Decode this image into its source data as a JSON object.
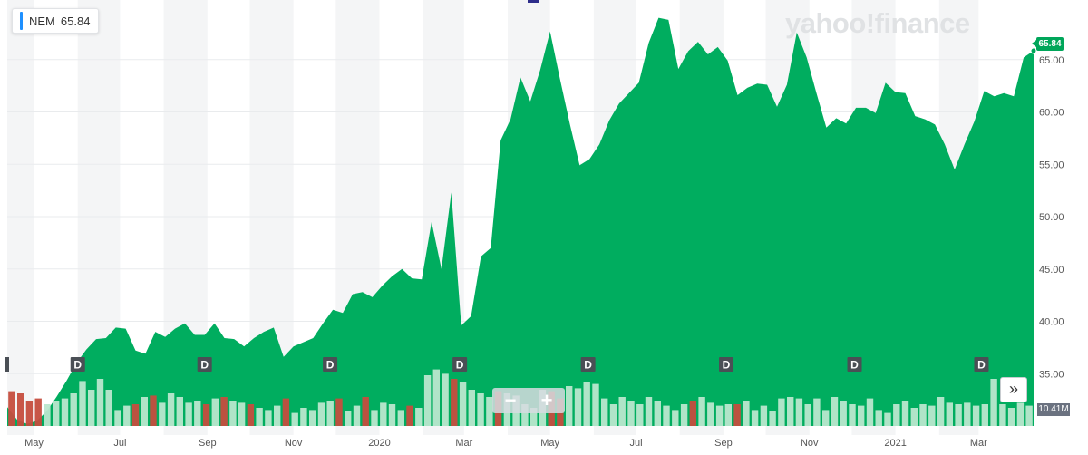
{
  "ticker": {
    "symbol": "NEM",
    "price": "65.84",
    "accent": "#1e90ff"
  },
  "watermark": "yahoo!finance",
  "last_price_label": "65.84",
  "volume_label": "10.41M",
  "controls": {
    "zoom_out": "−",
    "zoom_in": "+",
    "expand": "»",
    "expand_icon": "double-chevron-right-icon"
  },
  "colors": {
    "area": "#00ad5f",
    "volume_up": "#b9e7cd",
    "volume_down": "#c54d3e",
    "band": "#f4f5f6",
    "last_tag": "#00a65a"
  },
  "chart_data": {
    "type": "area",
    "symbol": "NEM",
    "ylim": [
      30,
      70
    ],
    "ticks_y": [
      "35.00",
      "40.00",
      "45.00",
      "50.00",
      "55.00",
      "60.00",
      "65.00"
    ],
    "x_labels": [
      {
        "label": "May",
        "date": "2019-05"
      },
      {
        "label": "Jul",
        "date": "2019-07"
      },
      {
        "label": "Sep",
        "date": "2019-09"
      },
      {
        "label": "Nov",
        "date": "2019-11"
      },
      {
        "label": "2020",
        "date": "2020-01"
      },
      {
        "label": "Mar",
        "date": "2020-03"
      },
      {
        "label": "May",
        "date": "2020-05"
      },
      {
        "label": "Jul",
        "date": "2020-07"
      },
      {
        "label": "Sep",
        "date": "2020-09"
      },
      {
        "label": "Nov",
        "date": "2020-11"
      },
      {
        "label": "2021",
        "date": "2021-01"
      },
      {
        "label": "Mar",
        "date": "2021-03"
      }
    ],
    "series": [
      {
        "values": [
          [
            "2019-04-12",
            31.8
          ],
          [
            "2019-04-19",
            30.6
          ],
          [
            "2019-04-26",
            30.2
          ],
          [
            "2019-05-03",
            30.5
          ],
          [
            "2019-05-10",
            31.4
          ],
          [
            "2019-05-17",
            32.8
          ],
          [
            "2019-05-24",
            34.3
          ],
          [
            "2019-05-31",
            36.0
          ],
          [
            "2019-06-07",
            37.3
          ],
          [
            "2019-06-14",
            38.3
          ],
          [
            "2019-06-21",
            38.4
          ],
          [
            "2019-06-28",
            39.4
          ],
          [
            "2019-07-05",
            39.3
          ],
          [
            "2019-07-12",
            37.2
          ],
          [
            "2019-07-19",
            36.9
          ],
          [
            "2019-07-26",
            39.0
          ],
          [
            "2019-08-02",
            38.5
          ],
          [
            "2019-08-09",
            39.3
          ],
          [
            "2019-08-16",
            39.8
          ],
          [
            "2019-08-23",
            38.7
          ],
          [
            "2019-08-30",
            38.7
          ],
          [
            "2019-09-06",
            39.8
          ],
          [
            "2019-09-13",
            38.4
          ],
          [
            "2019-09-20",
            38.3
          ],
          [
            "2019-09-27",
            37.6
          ],
          [
            "2019-10-04",
            38.4
          ],
          [
            "2019-10-11",
            39.0
          ],
          [
            "2019-10-18",
            39.4
          ],
          [
            "2019-10-25",
            36.6
          ],
          [
            "2019-11-01",
            37.6
          ],
          [
            "2019-11-08",
            38.0
          ],
          [
            "2019-11-15",
            38.4
          ],
          [
            "2019-11-22",
            39.8
          ],
          [
            "2019-11-29",
            41.1
          ],
          [
            "2019-12-06",
            40.8
          ],
          [
            "2019-12-13",
            42.6
          ],
          [
            "2019-12-20",
            42.8
          ],
          [
            "2019-12-27",
            42.3
          ],
          [
            "2020-01-03",
            43.4
          ],
          [
            "2020-01-10",
            44.3
          ],
          [
            "2020-01-17",
            45.0
          ],
          [
            "2020-01-24",
            44.1
          ],
          [
            "2020-01-31",
            44.0
          ],
          [
            "2020-02-07",
            49.5
          ],
          [
            "2020-02-14",
            45.0
          ],
          [
            "2020-02-21",
            52.3
          ],
          [
            "2020-02-28",
            39.6
          ],
          [
            "2020-03-06",
            40.5
          ],
          [
            "2020-03-13",
            46.2
          ],
          [
            "2020-03-20",
            47.0
          ],
          [
            "2020-03-27",
            57.3
          ],
          [
            "2020-04-03",
            59.3
          ],
          [
            "2020-04-10",
            63.3
          ],
          [
            "2020-04-17",
            61.0
          ],
          [
            "2020-04-24",
            64.0
          ],
          [
            "2020-05-01",
            67.7
          ],
          [
            "2020-05-08",
            63.2
          ],
          [
            "2020-05-15",
            58.9
          ],
          [
            "2020-05-22",
            54.9
          ],
          [
            "2020-05-29",
            55.5
          ],
          [
            "2020-06-05",
            56.9
          ],
          [
            "2020-06-12",
            59.2
          ],
          [
            "2020-06-19",
            60.8
          ],
          [
            "2020-06-26",
            61.8
          ],
          [
            "2020-07-03",
            62.8
          ],
          [
            "2020-07-10",
            66.6
          ],
          [
            "2020-07-17",
            69.0
          ],
          [
            "2020-07-24",
            68.8
          ],
          [
            "2020-07-31",
            64.1
          ],
          [
            "2020-08-07",
            65.8
          ],
          [
            "2020-08-14",
            66.7
          ],
          [
            "2020-08-21",
            65.5
          ],
          [
            "2020-08-28",
            66.2
          ],
          [
            "2020-09-04",
            64.9
          ],
          [
            "2020-09-11",
            61.6
          ],
          [
            "2020-09-18",
            62.3
          ],
          [
            "2020-09-25",
            62.7
          ],
          [
            "2020-10-02",
            62.6
          ],
          [
            "2020-10-09",
            60.5
          ],
          [
            "2020-10-16",
            62.6
          ],
          [
            "2020-10-23",
            67.6
          ],
          [
            "2020-10-30",
            65.2
          ],
          [
            "2020-11-06",
            61.8
          ],
          [
            "2020-11-13",
            58.5
          ],
          [
            "2020-11-20",
            59.4
          ],
          [
            "2020-11-27",
            58.9
          ],
          [
            "2020-12-04",
            60.4
          ],
          [
            "2020-12-11",
            60.4
          ],
          [
            "2020-12-18",
            59.9
          ],
          [
            "2020-12-25",
            62.8
          ],
          [
            "2021-01-01",
            61.9
          ],
          [
            "2021-01-08",
            61.8
          ],
          [
            "2021-01-15",
            59.6
          ],
          [
            "2021-01-22",
            59.3
          ],
          [
            "2021-01-29",
            58.8
          ],
          [
            "2021-02-05",
            56.9
          ],
          [
            "2021-02-12",
            54.5
          ],
          [
            "2021-02-19",
            56.9
          ],
          [
            "2021-02-26",
            59.1
          ],
          [
            "2021-03-05",
            62.0
          ],
          [
            "2021-03-12",
            61.5
          ],
          [
            "2021-03-19",
            61.8
          ],
          [
            "2021-03-26",
            61.5
          ],
          [
            "2021-04-02",
            65.2
          ],
          [
            "2021-04-09",
            65.84
          ]
        ]
      }
    ],
    "volume": [
      [
        0.48,
        "d"
      ],
      [
        0.45,
        "d"
      ],
      [
        0.35,
        "d"
      ],
      [
        0.38,
        "d"
      ],
      [
        0.3,
        "u"
      ],
      [
        0.35,
        "u"
      ],
      [
        0.38,
        "u"
      ],
      [
        0.45,
        "u"
      ],
      [
        0.62,
        "u"
      ],
      [
        0.5,
        "u"
      ],
      [
        0.65,
        "u"
      ],
      [
        0.5,
        "u"
      ],
      [
        0.22,
        "u"
      ],
      [
        0.28,
        "u"
      ],
      [
        0.3,
        "d"
      ],
      [
        0.4,
        "u"
      ],
      [
        0.42,
        "d"
      ],
      [
        0.32,
        "u"
      ],
      [
        0.45,
        "u"
      ],
      [
        0.4,
        "u"
      ],
      [
        0.32,
        "u"
      ],
      [
        0.35,
        "u"
      ],
      [
        0.3,
        "d"
      ],
      [
        0.38,
        "u"
      ],
      [
        0.4,
        "d"
      ],
      [
        0.35,
        "u"
      ],
      [
        0.32,
        "u"
      ],
      [
        0.3,
        "d"
      ],
      [
        0.25,
        "u"
      ],
      [
        0.22,
        "u"
      ],
      [
        0.28,
        "u"
      ],
      [
        0.38,
        "d"
      ],
      [
        0.18,
        "u"
      ],
      [
        0.25,
        "u"
      ],
      [
        0.22,
        "u"
      ],
      [
        0.32,
        "u"
      ],
      [
        0.35,
        "u"
      ],
      [
        0.38,
        "d"
      ],
      [
        0.2,
        "u"
      ],
      [
        0.28,
        "u"
      ],
      [
        0.4,
        "d"
      ],
      [
        0.22,
        "u"
      ],
      [
        0.32,
        "u"
      ],
      [
        0.3,
        "u"
      ],
      [
        0.22,
        "u"
      ],
      [
        0.28,
        "d"
      ],
      [
        0.25,
        "u"
      ],
      [
        0.7,
        "u"
      ],
      [
        0.78,
        "u"
      ],
      [
        0.72,
        "u"
      ],
      [
        0.65,
        "d"
      ],
      [
        0.6,
        "u"
      ],
      [
        0.5,
        "u"
      ],
      [
        0.45,
        "u"
      ],
      [
        0.4,
        "u"
      ],
      [
        0.48,
        "d"
      ],
      [
        0.45,
        "u"
      ],
      [
        0.42,
        "u"
      ],
      [
        0.3,
        "u"
      ],
      [
        0.25,
        "u"
      ],
      [
        0.5,
        "u"
      ],
      [
        0.48,
        "d"
      ],
      [
        0.38,
        "d"
      ],
      [
        0.55,
        "u"
      ],
      [
        0.52,
        "u"
      ],
      [
        0.6,
        "u"
      ],
      [
        0.58,
        "u"
      ],
      [
        0.38,
        "u"
      ],
      [
        0.3,
        "u"
      ],
      [
        0.4,
        "u"
      ],
      [
        0.35,
        "u"
      ],
      [
        0.3,
        "u"
      ],
      [
        0.4,
        "u"
      ],
      [
        0.35,
        "u"
      ],
      [
        0.28,
        "u"
      ],
      [
        0.22,
        "u"
      ],
      [
        0.3,
        "u"
      ],
      [
        0.35,
        "d"
      ],
      [
        0.4,
        "u"
      ],
      [
        0.32,
        "u"
      ],
      [
        0.28,
        "u"
      ],
      [
        0.3,
        "u"
      ],
      [
        0.3,
        "d"
      ],
      [
        0.35,
        "u"
      ],
      [
        0.22,
        "u"
      ],
      [
        0.28,
        "u"
      ],
      [
        0.2,
        "u"
      ],
      [
        0.38,
        "u"
      ],
      [
        0.4,
        "u"
      ],
      [
        0.38,
        "u"
      ],
      [
        0.3,
        "u"
      ],
      [
        0.38,
        "u"
      ],
      [
        0.22,
        "u"
      ],
      [
        0.4,
        "u"
      ],
      [
        0.35,
        "u"
      ],
      [
        0.3,
        "u"
      ],
      [
        0.28,
        "u"
      ],
      [
        0.38,
        "u"
      ],
      [
        0.22,
        "u"
      ],
      [
        0.18,
        "u"
      ],
      [
        0.3,
        "u"
      ],
      [
        0.35,
        "u"
      ],
      [
        0.25,
        "u"
      ],
      [
        0.3,
        "u"
      ],
      [
        0.28,
        "u"
      ],
      [
        0.4,
        "u"
      ],
      [
        0.32,
        "u"
      ],
      [
        0.3,
        "u"
      ],
      [
        0.32,
        "u"
      ],
      [
        0.28,
        "u"
      ],
      [
        0.3,
        "u"
      ],
      [
        0.65,
        "u"
      ],
      [
        0.3,
        "u"
      ],
      [
        0.25,
        "u"
      ],
      [
        0.32,
        "u"
      ],
      [
        0.28,
        "u"
      ]
    ],
    "dividend_markers": [
      {
        "label": "D",
        "date": "2019-06-01"
      },
      {
        "label": "D",
        "date": "2019-08-30"
      },
      {
        "label": "D",
        "date": "2019-11-27"
      },
      {
        "label": "D",
        "date": "2020-02-27"
      },
      {
        "label": "D",
        "date": "2020-05-28"
      },
      {
        "label": "D",
        "date": "2020-09-03"
      },
      {
        "label": "D",
        "date": "2020-12-03"
      },
      {
        "label": "D",
        "date": "2021-03-03"
      }
    ],
    "grid": true
  }
}
